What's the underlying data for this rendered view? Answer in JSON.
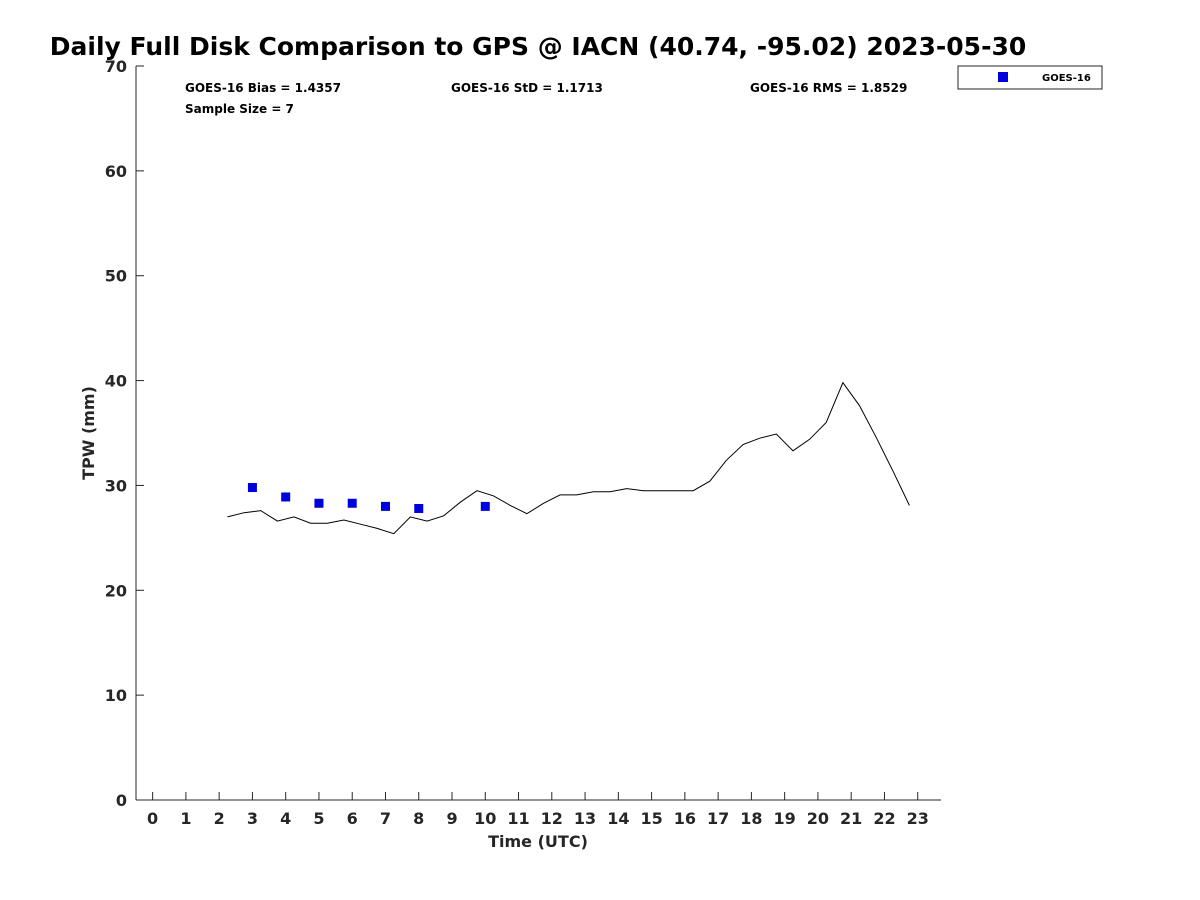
{
  "chart_data": {
    "type": "scatter",
    "title": "Daily Full Disk Comparison to GPS @ IACN (40.74, -95.02) 2023-05-30",
    "xlabel": "Time (UTC)",
    "ylabel": "TPW (mm)",
    "xlim": [
      -0.5,
      23.7
    ],
    "ylim": [
      0,
      70
    ],
    "x_ticks": [
      0,
      1,
      2,
      3,
      4,
      5,
      6,
      7,
      8,
      9,
      10,
      11,
      12,
      13,
      14,
      15,
      16,
      17,
      18,
      19,
      20,
      21,
      22,
      23
    ],
    "y_ticks": [
      0,
      10,
      20,
      30,
      40,
      50,
      60,
      70
    ],
    "grid": false,
    "legend_position": "top-right",
    "stats": {
      "bias": "GOES-16 Bias = 1.4357",
      "std": "GOES-16 StD = 1.1713",
      "rms": "GOES-16 RMS = 1.8529",
      "sample": "Sample Size = 7"
    },
    "series": [
      {
        "name": "GOES-16",
        "kind": "scatter",
        "marker": "square",
        "color": "#0000dd",
        "points": [
          [
            3.0,
            29.8
          ],
          [
            4.0,
            28.9
          ],
          [
            5.0,
            28.3
          ],
          [
            6.0,
            28.3
          ],
          [
            7.0,
            28.0
          ],
          [
            8.0,
            27.8
          ],
          [
            10.0,
            28.0
          ]
        ]
      },
      {
        "kind": "line",
        "color": "#000000",
        "points": [
          [
            2.25,
            27.0
          ],
          [
            2.75,
            27.4
          ],
          [
            3.25,
            27.6
          ],
          [
            3.75,
            26.6
          ],
          [
            4.25,
            27.0
          ],
          [
            4.75,
            26.4
          ],
          [
            5.25,
            26.4
          ],
          [
            5.75,
            26.7
          ],
          [
            6.25,
            26.3
          ],
          [
            6.75,
            25.9
          ],
          [
            7.25,
            25.4
          ],
          [
            7.75,
            27.0
          ],
          [
            8.25,
            26.6
          ],
          [
            8.75,
            27.1
          ],
          [
            9.25,
            28.4
          ],
          [
            9.75,
            29.5
          ],
          [
            10.25,
            29.0
          ],
          [
            10.75,
            28.1
          ],
          [
            11.25,
            27.3
          ],
          [
            11.75,
            28.3
          ],
          [
            12.25,
            29.1
          ],
          [
            12.75,
            29.1
          ],
          [
            13.25,
            29.4
          ],
          [
            13.75,
            29.4
          ],
          [
            14.25,
            29.7
          ],
          [
            14.75,
            29.5
          ],
          [
            15.25,
            29.5
          ],
          [
            15.75,
            29.5
          ],
          [
            16.25,
            29.5
          ],
          [
            16.75,
            30.4
          ],
          [
            17.25,
            32.4
          ],
          [
            17.75,
            33.9
          ],
          [
            18.25,
            34.5
          ],
          [
            18.75,
            34.9
          ],
          [
            19.25,
            33.3
          ],
          [
            19.75,
            34.4
          ],
          [
            20.25,
            36.0
          ],
          [
            20.75,
            39.8
          ],
          [
            21.25,
            37.6
          ],
          [
            21.75,
            34.6
          ],
          [
            22.25,
            31.4
          ],
          [
            22.75,
            28.1
          ]
        ]
      }
    ]
  }
}
